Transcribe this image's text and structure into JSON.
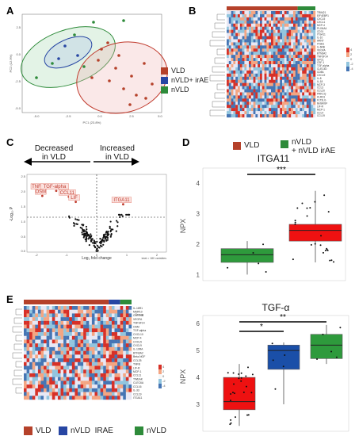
{
  "panels": {
    "A": {
      "label": "A",
      "ylabel": "PC2 (12.9%)",
      "xlabel": "PC1 (23.8%)",
      "xticks": [
        "-5.0",
        "-2.5",
        "0.0",
        "2.5",
        "5.0"
      ],
      "yticks": [
        "2.5",
        "0.0",
        "-2.5",
        "-5.0"
      ],
      "legend": [
        {
          "label": "VLD",
          "color": "#b5412a"
        },
        {
          "label": "nVLD+ irAE",
          "color": "#2746a3"
        },
        {
          "label": "nVLD",
          "color": "#2e8b3a"
        }
      ]
    },
    "B": {
      "label": "B",
      "genes": [
        "TRIM21",
        "EIF4EBP1",
        "CXCL5",
        "CXCL1",
        "MCP-4",
        "PLXNA4",
        "CD74",
        "ITGA11",
        "IL-10",
        "ARNT",
        "ITGB1",
        "IL-6RB",
        "VEGFA",
        "BTN3A2",
        "TNFSF14",
        "GPC1",
        "CSF-1",
        "TGF-alpha",
        "CLEC4D",
        "CD8A",
        "CXCL9",
        "IL-8",
        "IL-18",
        "MCP-3",
        "CCL3",
        "CCL20",
        "PRKCQ",
        "KLRD1",
        "FLT3LG",
        "BetaNGF",
        "LIF-R",
        "MCP-1",
        "CCL4",
        "CCL19"
      ],
      "scale": [
        "4",
        "2",
        "0",
        "-2",
        "-4"
      ],
      "legend": [
        {
          "label": "VLD",
          "color": "#b5412a"
        },
        {
          "label": "nVLD\n+ nVLD irAE",
          "color": "#2e8b3a"
        }
      ]
    },
    "C": {
      "label": "C",
      "decreased": "Decreased\nin VLD",
      "increased": "Increased\nin VLD",
      "ylabel": "-Log₁₀ P",
      "xlabel": "Log₂ fold change",
      "xticks": [
        "-2",
        "-1",
        "0",
        "1",
        "2"
      ],
      "yticks": [
        "2.5",
        "2.0",
        "1.5",
        "1.0",
        "0.5",
        "0.0"
      ],
      "note": "total = 180 variables",
      "labeled_points": [
        {
          "label": "TNFSF14",
          "x": -1.9,
          "y": 2.05
        },
        {
          "label": "TGF-alpha",
          "x": -1.45,
          "y": 2.05
        },
        {
          "label": "OSM",
          "x": -1.95,
          "y": 1.88
        },
        {
          "label": "CCL11",
          "x": -1.0,
          "y": 1.85
        },
        {
          "label": "LIF",
          "x": -0.75,
          "y": 1.68
        },
        {
          "label": "ITGA11",
          "x": 0.95,
          "y": 1.6
        }
      ]
    },
    "D": {
      "label": "D",
      "title": "ITGA11",
      "ylabel": "NPX",
      "yticks": [
        "4",
        "3",
        "2",
        "1"
      ],
      "significance": "***"
    },
    "E": {
      "label": "E",
      "genes": [
        "IL-18R1",
        "MMP10",
        "CLEC4A",
        "VEGFA",
        "TNFSF14",
        "OSM",
        "TGF-alpha",
        "CXCL10",
        "MCP-4",
        "CXCL5",
        "CXCL9",
        "IL-10RA",
        "BTN3A2",
        "Beta-NGF",
        "CCL25",
        "TNFB",
        "LIF-R",
        "MCP-1",
        "CCL11",
        "TWEAK",
        "CLEC6A",
        "CCL16",
        "IL-33",
        "CCL19",
        "ITGA11"
      ],
      "scale": [
        "4",
        "2",
        "0",
        "-2",
        "-4"
      ],
      "group_label": "Group",
      "legend": [
        {
          "label": "VLD",
          "color": "#b5412a"
        },
        {
          "label": "nVLD  IRAE",
          "color": "#2746a3"
        },
        {
          "label": "nVLD",
          "color": "#2e8b3a"
        }
      ]
    },
    "F": {
      "title": "TGF-α",
      "ylabel": "NPX",
      "yticks": [
        "6",
        "5",
        "4",
        "3"
      ],
      "significance": [
        "*",
        "**"
      ]
    }
  },
  "chart_data": [
    {
      "type": "scatter",
      "panel": "C",
      "xlabel": "Log₂ fold change",
      "ylabel": "-Log₁₀ P",
      "xlim": [
        -2.5,
        2.5
      ],
      "ylim": [
        0,
        2.6
      ],
      "threshold_p": 1.3,
      "labeled": [
        {
          "label": "TNFSF14",
          "x": -1.9,
          "y": 2.05
        },
        {
          "label": "TGF-alpha",
          "x": -1.45,
          "y": 2.05
        },
        {
          "label": "OSM",
          "x": -1.95,
          "y": 1.88
        },
        {
          "label": "CCL11",
          "x": -1.0,
          "y": 1.85
        },
        {
          "label": "LIF",
          "x": -0.75,
          "y": 1.68
        },
        {
          "label": "ITGA11",
          "x": 0.95,
          "y": 1.6
        }
      ]
    },
    {
      "type": "box",
      "panel": "D",
      "title": "ITGA11",
      "ylabel": "NPX",
      "ylim": [
        0.8,
        4.5
      ],
      "groups": [
        {
          "name": "nVLD",
          "color": "#2e9a3c",
          "q1": 1.4,
          "median": 1.65,
          "q3": 1.85,
          "min": 1.0,
          "max": 2.1
        },
        {
          "name": "VLD",
          "color": "#ee1111",
          "q1": 2.1,
          "median": 2.45,
          "q3": 2.65,
          "min": 1.4,
          "max": 3.75
        }
      ]
    },
    {
      "type": "box",
      "panel": "F",
      "title": "TGF-α",
      "ylabel": "NPX",
      "ylim": [
        2,
        6.3
      ],
      "groups": [
        {
          "name": "VLD",
          "color": "#ee1111",
          "q1": 2.8,
          "median": 3.1,
          "q3": 4.0,
          "min": 2.2,
          "max": 4.5
        },
        {
          "name": "nVLD IRAE",
          "color": "#1a4fa8",
          "q1": 4.3,
          "median": 5.0,
          "q3": 5.2,
          "min": 3.0,
          "max": 5.3
        },
        {
          "name": "nVLD",
          "color": "#2e9a3c",
          "q1": 4.7,
          "median": 5.2,
          "q3": 5.6,
          "min": 4.5,
          "max": 5.95
        }
      ]
    }
  ]
}
